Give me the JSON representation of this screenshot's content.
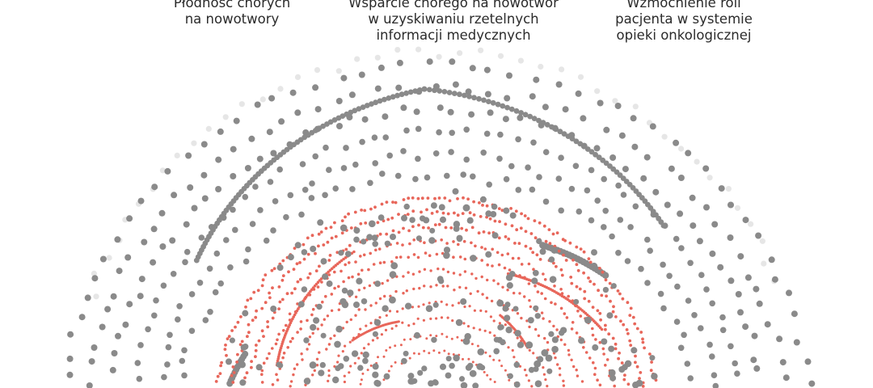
{
  "labels": [
    {
      "lines": [
        "Płodność chorych",
        "na nowotwory"
      ]
    },
    {
      "lines": [
        "Wsparcie chorego na nowotwór",
        "w uzyskiwaniu rzetelnych",
        "informacji medycznych"
      ]
    },
    {
      "lines": [
        "Wzmocnienie roli",
        "pacjenta w systemie",
        "opieki onkologicznej"
      ]
    }
  ],
  "colors": {
    "grey_dot": "#8a8a8a",
    "light_dot": "#e6e6e6",
    "red_dot": "#e8665a",
    "text": "#2b2b2b"
  }
}
